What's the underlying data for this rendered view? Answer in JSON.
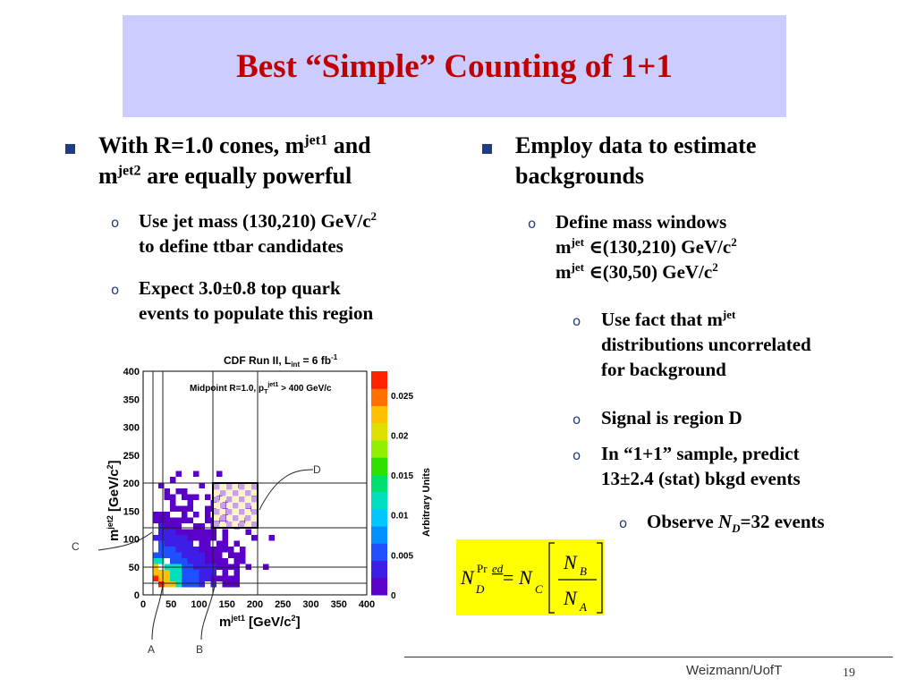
{
  "slide": {
    "title": "Best “Simple” Counting of 1+1",
    "left": {
      "bullet_prefix": "With R=1.0 cones, m",
      "bullet_sup1": "jet1",
      "bullet_mid": " and",
      "bullet_line2_prefix": "m",
      "bullet_sup2": "jet2",
      "bullet_line2_suffix": " are equally powerful",
      "sub1_line1": "Use jet mass (130,210) GeV/c",
      "sub1_sup": "2",
      "sub1_line2": "to define ttbar candidates",
      "sub2_line1": "Expect 3.0±0.8 top quark",
      "sub2_line2": "events to populate this region"
    },
    "right": {
      "bullet_line1": "Employ data to estimate",
      "bullet_line2": "backgrounds",
      "sub1_line1": "Define mass windows",
      "sub1_m": "m",
      "sub1_jet": "jet",
      "sub1_range1": " ∈(130,210) GeV/c",
      "sub1_range2": " ∈(30,50) GeV/c",
      "sub1_sup": "2",
      "sub2_line1": "Use fact that m",
      "sub2_jet": "jet",
      "sub2_line2": "distributions uncorrelated",
      "sub2_line3": "for background",
      "sub3": "Signal is region D",
      "sub4_line1": "In “1+1” sample, predict",
      "sub4_line2": "13±2.4 (stat) bkgd events",
      "sub5_prefix": "Observe ",
      "sub5_N": "N",
      "sub5_D": "D",
      "sub5_suffix": "=32 events"
    },
    "formula": {
      "N": "N",
      "D": "D",
      "pred_pr": "Pr",
      "pred_ed": "ed",
      "eq": "=",
      "C": "C",
      "B": "B",
      "A": "A"
    },
    "plot": {
      "header": "CDF Run II, L",
      "header_sub": "int",
      "header_suffix": " = 6 fb",
      "header_sup": "-1",
      "subheader": "Midpoint R=1.0, p",
      "subheader_sub": "T",
      "subheader_sup": "jet1",
      "subheader_suffix": " > 400 GeV/c",
      "ylabel_m": "m",
      "ylabel_sup": "jet2",
      "ylabel_rest": " [GeV/c",
      "ylabel_sup2": "2",
      "ylabel_end": "]",
      "xlabel_m": "m",
      "xlabel_sup": "jet1",
      "xlabel_rest": " [GeV/c",
      "xlabel_sup2": "2",
      "xlabel_end": "]",
      "xticks": [
        "0",
        "50",
        "100",
        "150",
        "200",
        "250",
        "300",
        "350",
        "400"
      ],
      "yticks": [
        "0",
        "50",
        "100",
        "150",
        "200",
        "250",
        "300",
        "350",
        "400"
      ],
      "zticks": [
        "0",
        "0.005",
        "0.01",
        "0.015",
        "0.02",
        "0.025"
      ],
      "zlabel": "Arbitrary Units",
      "regions": {
        "A": "A",
        "B": "B",
        "C": "C",
        "D": "D"
      }
    },
    "footer": "Weizmann/UofT",
    "page": "19"
  }
}
